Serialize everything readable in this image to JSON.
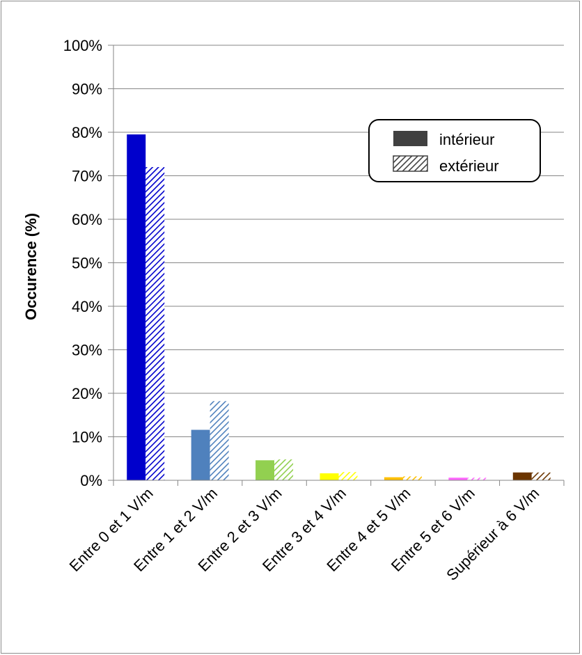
{
  "chart_data": {
    "type": "bar",
    "title": "",
    "xlabel": "",
    "ylabel": "Occurence (%)",
    "ylim": [
      0,
      100
    ],
    "yticks": [
      "0%",
      "10%",
      "20%",
      "30%",
      "40%",
      "50%",
      "60%",
      "70%",
      "80%",
      "90%",
      "100%"
    ],
    "grid": true,
    "legend_position": "top-right",
    "categories": [
      "Entre 0 et 1 V/m",
      "Entre 1 et 2 V/m",
      "Entre 2 et 3 V/m",
      "Entre 3 et 4 V/m",
      "Entre 4 et 5 V/m",
      "Entre 5 et 6 V/m",
      "Supérieur à 6 V/m"
    ],
    "category_colors": [
      "#0000cc",
      "#4f81bd",
      "#92d050",
      "#ffff00",
      "#ffc000",
      "#ff66ff",
      "#6b3500"
    ],
    "series": [
      {
        "name": "intérieur",
        "pattern": "solid",
        "values": [
          79.5,
          11.6,
          4.6,
          1.6,
          0.7,
          0.6,
          1.8
        ]
      },
      {
        "name": "extérieur",
        "pattern": "hatched",
        "values": [
          72.0,
          18.2,
          4.8,
          1.9,
          0.9,
          0.6,
          1.8
        ]
      }
    ]
  }
}
